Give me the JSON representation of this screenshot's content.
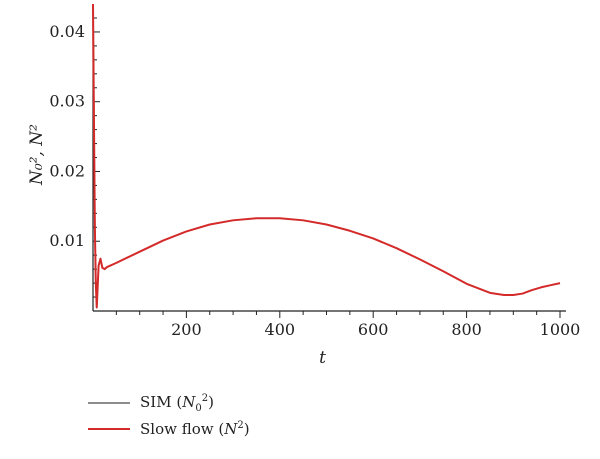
{
  "chart_data": {
    "type": "line",
    "xlabel": "t",
    "ylabel": "N₀², N²",
    "xlim": [
      0,
      1000
    ],
    "ylim": [
      0,
      0.042
    ],
    "x_ticks": [
      200,
      400,
      600,
      800,
      1000
    ],
    "y_ticks": [
      0.01,
      0.02,
      0.03,
      0.04
    ],
    "x_tick_labels": [
      "200",
      "400",
      "600",
      "800",
      "1000"
    ],
    "y_tick_labels": [
      "0.01",
      "0.02",
      "0.03",
      "0.04"
    ],
    "grid": false,
    "legend_position": "bottom-left",
    "series": [
      {
        "name": "SIM (N₀²)",
        "color": "#8c8c8c",
        "x": [
          0,
          2,
          4,
          6,
          8,
          12,
          16,
          20,
          25,
          30
        ],
        "y": [
          0.044,
          0.028,
          0.012,
          0.004,
          0.0005,
          0.0065,
          0.0075,
          0.0062,
          0.006,
          0.0063
        ]
      },
      {
        "name": "Slow flow (N²)",
        "color": "#d42a2a",
        "x": [
          0,
          2,
          4,
          6,
          8,
          12,
          16,
          20,
          25,
          30,
          50,
          100,
          150,
          200,
          250,
          300,
          350,
          400,
          450,
          500,
          550,
          600,
          650,
          700,
          750,
          800,
          850,
          880,
          900,
          920,
          940,
          960,
          980,
          1000
        ],
        "y": [
          0.044,
          0.028,
          0.012,
          0.004,
          0.0005,
          0.0065,
          0.0075,
          0.0062,
          0.006,
          0.0063,
          0.0069,
          0.0085,
          0.0101,
          0.0114,
          0.0124,
          0.013,
          0.0133,
          0.0133,
          0.013,
          0.0124,
          0.0115,
          0.0104,
          0.009,
          0.0074,
          0.0057,
          0.0039,
          0.0026,
          0.0023,
          0.0023,
          0.0025,
          0.003,
          0.0034,
          0.0037,
          0.004
        ]
      }
    ]
  },
  "legend": {
    "items": [
      {
        "base": "SIM (N",
        "sub": "0",
        "sup": "2",
        "tail": ")",
        "color": "#8c8c8c"
      },
      {
        "base": "Slow flow (N",
        "sub": "",
        "sup": "2",
        "tail": ")",
        "color": "#d42a2a"
      }
    ]
  }
}
